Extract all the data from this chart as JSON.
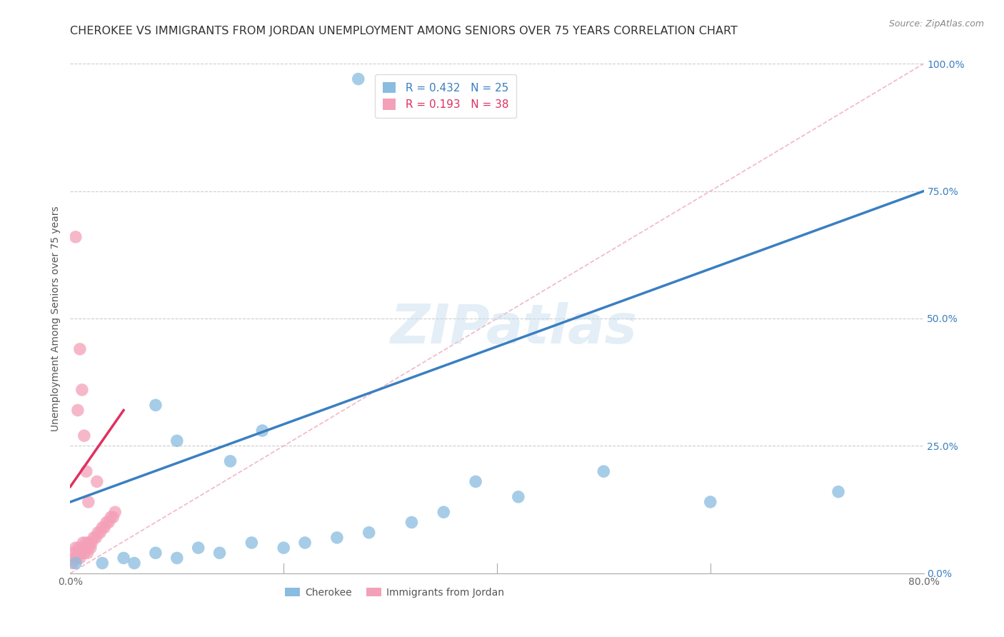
{
  "title": "CHEROKEE VS IMMIGRANTS FROM JORDAN UNEMPLOYMENT AMONG SENIORS OVER 75 YEARS CORRELATION CHART",
  "source": "Source: ZipAtlas.com",
  "ylabel": "Unemployment Among Seniors over 75 years",
  "legend_cherokee": "Cherokee",
  "legend_jordan": "Immigrants from Jordan",
  "legend_r_cherokee": "R = 0.432",
  "legend_n_cherokee": "N = 25",
  "legend_r_jordan": "R = 0.193",
  "legend_n_jordan": "N = 38",
  "watermark": "ZIPatlas",
  "xlim": [
    0.0,
    0.8
  ],
  "ylim": [
    0.0,
    1.0
  ],
  "yticks": [
    0.0,
    0.25,
    0.5,
    0.75,
    1.0
  ],
  "ytick_labels": [
    "0.0%",
    "25.0%",
    "50.0%",
    "75.0%",
    "100.0%"
  ],
  "xticks": [
    0.0,
    0.2,
    0.4,
    0.6,
    0.8
  ],
  "xtick_labels": [
    "0.0%",
    "",
    "",
    "",
    "80.0%"
  ],
  "cherokee_x": [
    0.005,
    0.27,
    0.03,
    0.05,
    0.06,
    0.08,
    0.1,
    0.12,
    0.14,
    0.17,
    0.2,
    0.22,
    0.25,
    0.28,
    0.32,
    0.35,
    0.42,
    0.5,
    0.6,
    0.72,
    0.08,
    0.1,
    0.15,
    0.18,
    0.38
  ],
  "cherokee_y": [
    0.02,
    0.97,
    0.02,
    0.03,
    0.02,
    0.04,
    0.03,
    0.05,
    0.04,
    0.06,
    0.05,
    0.06,
    0.07,
    0.08,
    0.1,
    0.12,
    0.15,
    0.2,
    0.14,
    0.16,
    0.33,
    0.26,
    0.22,
    0.28,
    0.18
  ],
  "jordan_x": [
    0.002,
    0.003,
    0.004,
    0.005,
    0.006,
    0.007,
    0.008,
    0.009,
    0.01,
    0.011,
    0.012,
    0.013,
    0.014,
    0.015,
    0.016,
    0.017,
    0.018,
    0.019,
    0.02,
    0.022,
    0.024,
    0.026,
    0.028,
    0.03,
    0.032,
    0.034,
    0.036,
    0.038,
    0.04,
    0.042,
    0.005,
    0.007,
    0.009,
    0.011,
    0.013,
    0.015,
    0.017,
    0.025
  ],
  "jordan_y": [
    0.02,
    0.04,
    0.03,
    0.05,
    0.03,
    0.04,
    0.05,
    0.03,
    0.04,
    0.05,
    0.06,
    0.04,
    0.05,
    0.06,
    0.04,
    0.05,
    0.06,
    0.05,
    0.06,
    0.07,
    0.07,
    0.08,
    0.08,
    0.09,
    0.09,
    0.1,
    0.1,
    0.11,
    0.11,
    0.12,
    0.66,
    0.32,
    0.44,
    0.36,
    0.27,
    0.2,
    0.14,
    0.18
  ],
  "cherokee_line_x": [
    0.0,
    0.8
  ],
  "cherokee_line_y": [
    0.14,
    0.75
  ],
  "jordan_line_x": [
    0.0,
    0.05
  ],
  "jordan_line_y": [
    0.17,
    0.32
  ],
  "diag_line_x": [
    0.0,
    0.8
  ],
  "diag_line_y": [
    0.0,
    1.0
  ],
  "cherokee_color": "#89bce0",
  "jordan_color": "#f4a0b8",
  "cherokee_line_color": "#3a7fc1",
  "jordan_line_color": "#e03060",
  "diag_line_color": "#f0b0c0",
  "background_color": "#ffffff",
  "grid_color": "#cccccc",
  "title_color": "#333333",
  "title_fontsize": 11.5,
  "axis_fontsize": 10,
  "legend_fontsize": 11
}
